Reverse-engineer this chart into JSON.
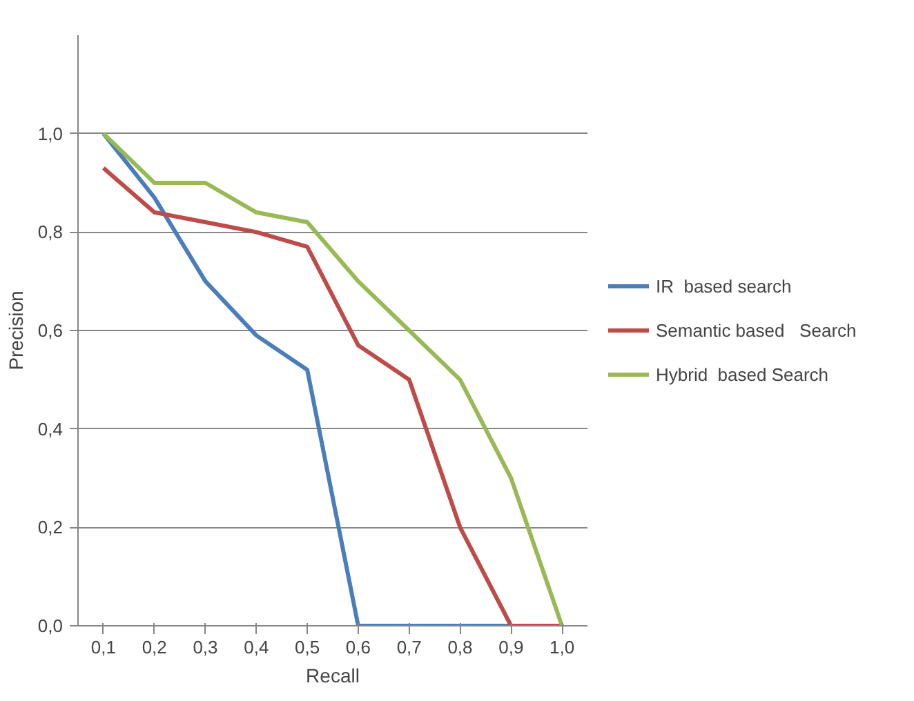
{
  "chart_data": {
    "type": "line",
    "xlabel": "Recall",
    "ylabel": "Precision",
    "categories": [
      "0,1",
      "0,2",
      "0,3",
      "0,4",
      "0,5",
      "0,6",
      "0,7",
      "0,8",
      "0,9",
      "1,0"
    ],
    "series": [
      {
        "name": "IR  based search",
        "color": "#4a7ebb",
        "values": [
          1.0,
          0.87,
          0.7,
          0.59,
          0.52,
          0.0,
          0.0,
          0.0,
          0.0,
          0.0
        ]
      },
      {
        "name": "Semantic based   Search",
        "color": "#be4b48",
        "values": [
          0.93,
          0.84,
          0.82,
          0.8,
          0.77,
          0.57,
          0.5,
          0.2,
          0.0,
          0.0
        ]
      },
      {
        "name": "Hybrid  based Search",
        "color": "#98b954",
        "values": [
          1.0,
          0.9,
          0.9,
          0.84,
          0.82,
          0.7,
          0.6,
          0.5,
          0.3,
          0.0
        ]
      }
    ],
    "ylim": [
      0,
      1.2
    ],
    "yticks": [
      {
        "value": 0,
        "label": "0,0"
      },
      {
        "value": 0.2,
        "label": "0,2"
      },
      {
        "value": 0.4,
        "label": "0,4"
      },
      {
        "value": 0.6,
        "label": "0,6"
      },
      {
        "value": 0.8,
        "label": "0,8"
      },
      {
        "value": 1.0,
        "label": "1,0"
      }
    ],
    "grid": "y",
    "legend": "right",
    "marker": "none",
    "line_style": "solid"
  }
}
